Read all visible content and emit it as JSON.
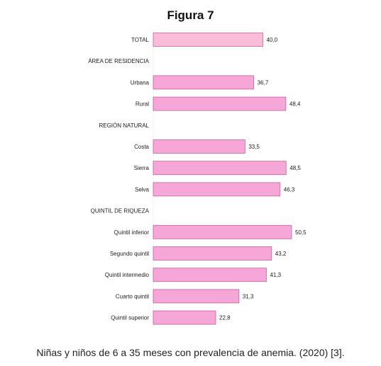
{
  "figure": {
    "title": "Figura 7",
    "caption": "Niñas y niños de 6 a 35 meses con prevalencia de anemia. (2020) [3]."
  },
  "chart_data": {
    "type": "bar",
    "orientation": "horizontal",
    "categories": [
      "TOTAL",
      "ÁREA DE RESIDENCIA",
      "Urbana",
      "Rural",
      "REGIÓN NATURAL",
      "Costa",
      "Sierra",
      "Selva",
      "QUINTIL DE RIQUEZA",
      "Quintil inferior",
      "Segundo quintil",
      "Quintil intermedio",
      "Cuarto quintil",
      "Quintil superior"
    ],
    "values": [
      40.0,
      null,
      36.7,
      48.4,
      null,
      33.5,
      48.5,
      46.3,
      null,
      50.5,
      43.2,
      41.3,
      31.3,
      22.8
    ],
    "value_labels": [
      "40,0",
      "",
      "36,7",
      "48,4",
      "",
      "33,5",
      "48,5",
      "46,3",
      "",
      "50,5",
      "43,2",
      "41,3",
      "31,3",
      "22,8"
    ],
    "xlim": [
      0,
      50.5
    ],
    "grid": false,
    "legend": "none",
    "colors": {
      "total_bar": "#f9bcd9",
      "bar": "#f7a6d8",
      "bar_border": "#c2649c"
    }
  }
}
